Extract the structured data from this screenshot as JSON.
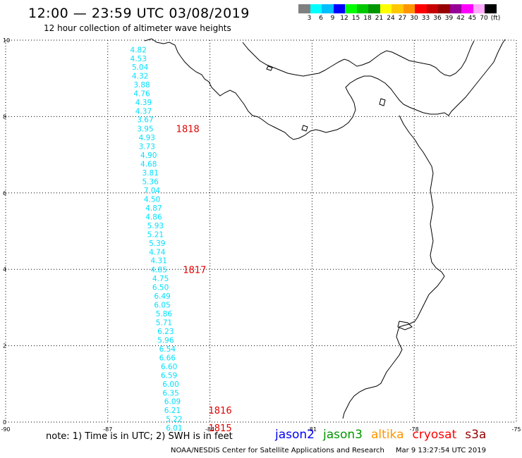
{
  "header": {
    "title": "12:00 — 23:59 UTC 03/08/2019",
    "subtitle": "12 hour collection of altimeter wave heights"
  },
  "colorbar": {
    "colors": [
      "#808080",
      "#00ffff",
      "#00bfff",
      "#0000ff",
      "#00ff00",
      "#00c800",
      "#009600",
      "#ffff00",
      "#ffc800",
      "#ff9600",
      "#ff0000",
      "#c80000",
      "#960000",
      "#960096",
      "#ff00ff",
      "#ffaaff",
      "#000000"
    ],
    "labels": [
      "3",
      "6",
      "9",
      "12",
      "15",
      "18",
      "21",
      "24",
      "27",
      "30",
      "33",
      "36",
      "39",
      "42",
      "45",
      "70",
      "(ft)"
    ]
  },
  "chart_data": {
    "type": "scatter",
    "x_ticks": [
      "-90",
      "-87",
      "-84",
      "-81",
      "-78",
      "-75"
    ],
    "y_ticks": [
      "0",
      "2",
      "4",
      "6",
      "8",
      "10"
    ],
    "xlim": [
      -90,
      -75
    ],
    "ylim": [
      0,
      10
    ],
    "grid": true,
    "value_color": "#00e0ff",
    "pass_color": "#e00000",
    "wave_heights": [
      {
        "lon": -86.1,
        "lat": 9.75,
        "label": "4.82"
      },
      {
        "lon": -86.1,
        "lat": 9.52,
        "label": "4.53"
      },
      {
        "lon": -86.05,
        "lat": 9.3,
        "label": "5.04"
      },
      {
        "lon": -86.05,
        "lat": 9.07,
        "label": "4.32"
      },
      {
        "lon": -86.0,
        "lat": 8.84,
        "label": "3.88"
      },
      {
        "lon": -86.0,
        "lat": 8.61,
        "label": "4.76"
      },
      {
        "lon": -85.95,
        "lat": 8.38,
        "label": "4.39"
      },
      {
        "lon": -85.95,
        "lat": 8.15,
        "label": "4.37"
      },
      {
        "lon": -85.9,
        "lat": 7.92,
        "label": "3.67"
      },
      {
        "lon": -85.9,
        "lat": 7.68,
        "label": "3.95"
      },
      {
        "lon": -85.85,
        "lat": 7.45,
        "label": "4.93"
      },
      {
        "lon": -85.85,
        "lat": 7.22,
        "label": "3.73"
      },
      {
        "lon": -85.8,
        "lat": 6.99,
        "label": "4.90"
      },
      {
        "lon": -85.8,
        "lat": 6.76,
        "label": "4.68"
      },
      {
        "lon": -85.75,
        "lat": 6.53,
        "label": "3.81"
      },
      {
        "lon": -85.75,
        "lat": 6.3,
        "label": "5.36"
      },
      {
        "lon": -85.7,
        "lat": 6.07,
        "label": "7.04"
      },
      {
        "lon": -85.7,
        "lat": 5.84,
        "label": "4.50"
      },
      {
        "lon": -85.65,
        "lat": 5.61,
        "label": "4.87"
      },
      {
        "lon": -85.65,
        "lat": 5.38,
        "label": "4.86"
      },
      {
        "lon": -85.6,
        "lat": 5.15,
        "label": "5.93"
      },
      {
        "lon": -85.6,
        "lat": 4.92,
        "label": "5.21"
      },
      {
        "lon": -85.55,
        "lat": 4.69,
        "label": "5.39"
      },
      {
        "lon": -85.55,
        "lat": 4.46,
        "label": "4.74"
      },
      {
        "lon": -85.5,
        "lat": 4.23,
        "label": "4.31"
      },
      {
        "lon": -85.5,
        "lat": 3.99,
        "label": "4.85"
      },
      {
        "lon": -85.45,
        "lat": 3.76,
        "label": "4.75"
      },
      {
        "lon": -85.45,
        "lat": 3.53,
        "label": "6.50"
      },
      {
        "lon": -85.4,
        "lat": 3.3,
        "label": "6.49"
      },
      {
        "lon": -85.4,
        "lat": 3.07,
        "label": "6.05"
      },
      {
        "lon": -85.35,
        "lat": 2.84,
        "label": "5.86"
      },
      {
        "lon": -85.35,
        "lat": 2.61,
        "label": "5.71"
      },
      {
        "lon": -85.3,
        "lat": 2.38,
        "label": "6.23"
      },
      {
        "lon": -85.3,
        "lat": 2.15,
        "label": "5.96"
      },
      {
        "lon": -85.25,
        "lat": 1.92,
        "label": "6.54"
      },
      {
        "lon": -85.25,
        "lat": 1.69,
        "label": "6.66"
      },
      {
        "lon": -85.2,
        "lat": 1.46,
        "label": "6.60"
      },
      {
        "lon": -85.2,
        "lat": 1.23,
        "label": "6.59"
      },
      {
        "lon": -85.15,
        "lat": 1.0,
        "label": "6.00"
      },
      {
        "lon": -85.15,
        "lat": 0.77,
        "label": "6.35"
      },
      {
        "lon": -85.1,
        "lat": 0.54,
        "label": "6.09"
      },
      {
        "lon": -85.1,
        "lat": 0.31,
        "label": "6.21"
      },
      {
        "lon": -85.05,
        "lat": 0.08,
        "label": "5.22"
      },
      {
        "lon": -85.05,
        "lat": -0.15,
        "label": "6.01"
      }
    ],
    "pass_times": [
      {
        "lon": -84.65,
        "lat": 7.68,
        "label": "1818"
      },
      {
        "lon": -84.45,
        "lat": 3.99,
        "label": "1817"
      },
      {
        "lon": -83.7,
        "lat": 0.31,
        "label": "1816"
      },
      {
        "lon": -83.7,
        "lat": -0.15,
        "label": "1815"
      }
    ]
  },
  "footer": {
    "note": "note:  1) Time is in UTC;  2) SWH is in feet",
    "satellites": [
      {
        "name": "jason2",
        "color": "#0000ff"
      },
      {
        "name": "jason3",
        "color": "#009600"
      },
      {
        "name": "altika",
        "color": "#ff9600"
      },
      {
        "name": "cryosat",
        "color": "#ff0000"
      },
      {
        "name": "s3a",
        "color": "#960000"
      }
    ],
    "credit": "NOAA/NESDIS Center for Satellite Applications and Research",
    "timestamp": "Mar  9 13:27:54 UTC 2019"
  }
}
